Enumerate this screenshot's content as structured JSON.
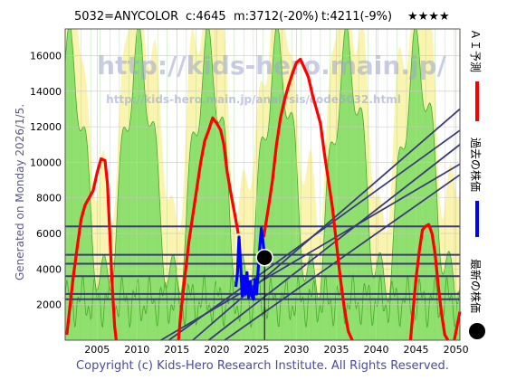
{
  "header": {
    "code_name": "5032=ANYCOLOR",
    "current": "c:4645",
    "median": "m:3712(-20%)",
    "target": "t:4211(-9%)",
    "rating": "★★★★"
  },
  "side_label": "Generated on Monday 2026/1/5.",
  "watermark": {
    "line1": "http://kids-hero.main.jp/",
    "line2": "http://kids-hero.main.jp/analysis/code5032.html"
  },
  "legend": [
    {
      "label": "ＡＩ予測",
      "color": "#ff0000",
      "marker": "line"
    },
    {
      "label": "過去の株価",
      "color": "#0000ff",
      "marker": "line"
    },
    {
      "label": "最新の株価",
      "color": "#000000",
      "marker": "dot"
    }
  ],
  "footer": "Copyright (c) Kids-Hero Research Institute. All Rights Reserved.",
  "colors": {
    "background": "#ffffff",
    "zone_green": "#90e070",
    "zone_yellow": "#fbf4b0",
    "green_edge": "#44aa22",
    "support_line": "#3a3a7a",
    "ai_forecast": "#ff0000",
    "past_price": "#0000ff"
  },
  "chart_data": {
    "type": "line",
    "xlim": [
      2001,
      2050.5
    ],
    "ylim": [
      0,
      17500
    ],
    "x_ticks": [
      2005,
      2010,
      2015,
      2020,
      2025,
      2030,
      2035,
      2040,
      2045,
      2050
    ],
    "y_ticks": [
      2000,
      4000,
      6000,
      8000,
      10000,
      12000,
      14000,
      16000
    ],
    "grid": true,
    "latest_point": {
      "x": 2026.0,
      "y": 4645
    },
    "horizontal_levels": [
      6400,
      4800,
      4300,
      3600,
      2600,
      2300
    ],
    "trend_lines": [
      {
        "x1": 2017.0,
        "y1": 0,
        "x2": 2050.5,
        "y2": 13000
      },
      {
        "x1": 2014.0,
        "y1": 0,
        "x2": 2050.5,
        "y2": 11800
      },
      {
        "x1": 2019.0,
        "y1": 0,
        "x2": 2050.5,
        "y2": 11000
      },
      {
        "x1": 2013.0,
        "y1": 0,
        "x2": 2050.5,
        "y2": 9900
      },
      {
        "x1": 2021.0,
        "y1": 0,
        "x2": 2050.5,
        "y2": 9300
      }
    ],
    "series": [
      {
        "name": "ＡＩ予測",
        "color": "#ff0000",
        "segments": [
          [
            [
              2001.2,
              300
            ],
            [
              2001.5,
              1500
            ],
            [
              2002,
              3500
            ],
            [
              2002.5,
              5200
            ],
            [
              2003,
              6800
            ],
            [
              2003.5,
              7600
            ],
            [
              2004,
              8000
            ],
            [
              2004.5,
              8400
            ],
            [
              2005,
              9400
            ],
            [
              2005.5,
              10200
            ],
            [
              2006,
              10100
            ],
            [
              2006.3,
              8800
            ],
            [
              2006.6,
              6000
            ],
            [
              2006.9,
              3000
            ],
            [
              2007.2,
              800
            ],
            [
              2007.4,
              0
            ]
          ],
          [
            [
              2015.2,
              0
            ],
            [
              2015.5,
              1500
            ],
            [
              2016,
              3500
            ],
            [
              2016.5,
              5500
            ],
            [
              2017,
              7000
            ],
            [
              2017.5,
              8500
            ],
            [
              2018,
              10000
            ],
            [
              2018.5,
              11200
            ],
            [
              2019,
              11800
            ],
            [
              2019.5,
              12500
            ],
            [
              2020,
              12200
            ],
            [
              2020.5,
              11800
            ],
            [
              2020.9,
              11000
            ],
            [
              2021.3,
              9500
            ],
            [
              2021.8,
              8200
            ],
            [
              2022.3,
              7000
            ],
            [
              2022.7,
              6000
            ]
          ],
          [
            [
              2025.9,
              5800
            ],
            [
              2026.5,
              7500
            ],
            [
              2027,
              9000
            ],
            [
              2027.5,
              11000
            ],
            [
              2028,
              12500
            ],
            [
              2028.5,
              13500
            ],
            [
              2029,
              14300
            ],
            [
              2029.5,
              15000
            ],
            [
              2030,
              15600
            ],
            [
              2030.5,
              15800
            ],
            [
              2031,
              15300
            ],
            [
              2031.5,
              14800
            ],
            [
              2032,
              13800
            ],
            [
              2032.5,
              13000
            ],
            [
              2033,
              12200
            ],
            [
              2033.5,
              10500
            ],
            [
              2034,
              9000
            ],
            [
              2034.5,
              7500
            ],
            [
              2035,
              5500
            ],
            [
              2035.5,
              3500
            ],
            [
              2036,
              1800
            ],
            [
              2036.5,
              500
            ],
            [
              2037,
              0
            ]
          ],
          [
            [
              2044.3,
              0
            ],
            [
              2044.6,
              1500
            ],
            [
              2045,
              3500
            ],
            [
              2045.4,
              5000
            ],
            [
              2045.8,
              6200
            ],
            [
              2046.2,
              6400
            ],
            [
              2046.6,
              6500
            ],
            [
              2047,
              6000
            ],
            [
              2047.4,
              4800
            ],
            [
              2047.8,
              3000
            ],
            [
              2048.2,
              1500
            ],
            [
              2048.6,
              300
            ],
            [
              2049,
              0
            ]
          ],
          [
            [
              2049.8,
              0
            ],
            [
              2050.1,
              700
            ],
            [
              2050.5,
              1600
            ]
          ]
        ]
      },
      {
        "name": "過去の株価",
        "color": "#0000ff",
        "segments": [
          [
            [
              2022.4,
              3000
            ],
            [
              2022.6,
              3800
            ],
            [
              2022.8,
              5800
            ],
            [
              2023.0,
              4200
            ],
            [
              2023.2,
              2500
            ],
            [
              2023.4,
              3600
            ],
            [
              2023.6,
              2600
            ],
            [
              2023.8,
              3800
            ],
            [
              2024.0,
              2400
            ],
            [
              2024.2,
              3300
            ],
            [
              2024.4,
              2500
            ],
            [
              2024.6,
              2300
            ],
            [
              2024.8,
              3400
            ],
            [
              2025.0,
              2600
            ],
            [
              2025.2,
              4000
            ],
            [
              2025.4,
              5200
            ],
            [
              2025.6,
              6300
            ],
            [
              2025.8,
              5600
            ],
            [
              2026.0,
              4645
            ]
          ]
        ]
      }
    ]
  }
}
